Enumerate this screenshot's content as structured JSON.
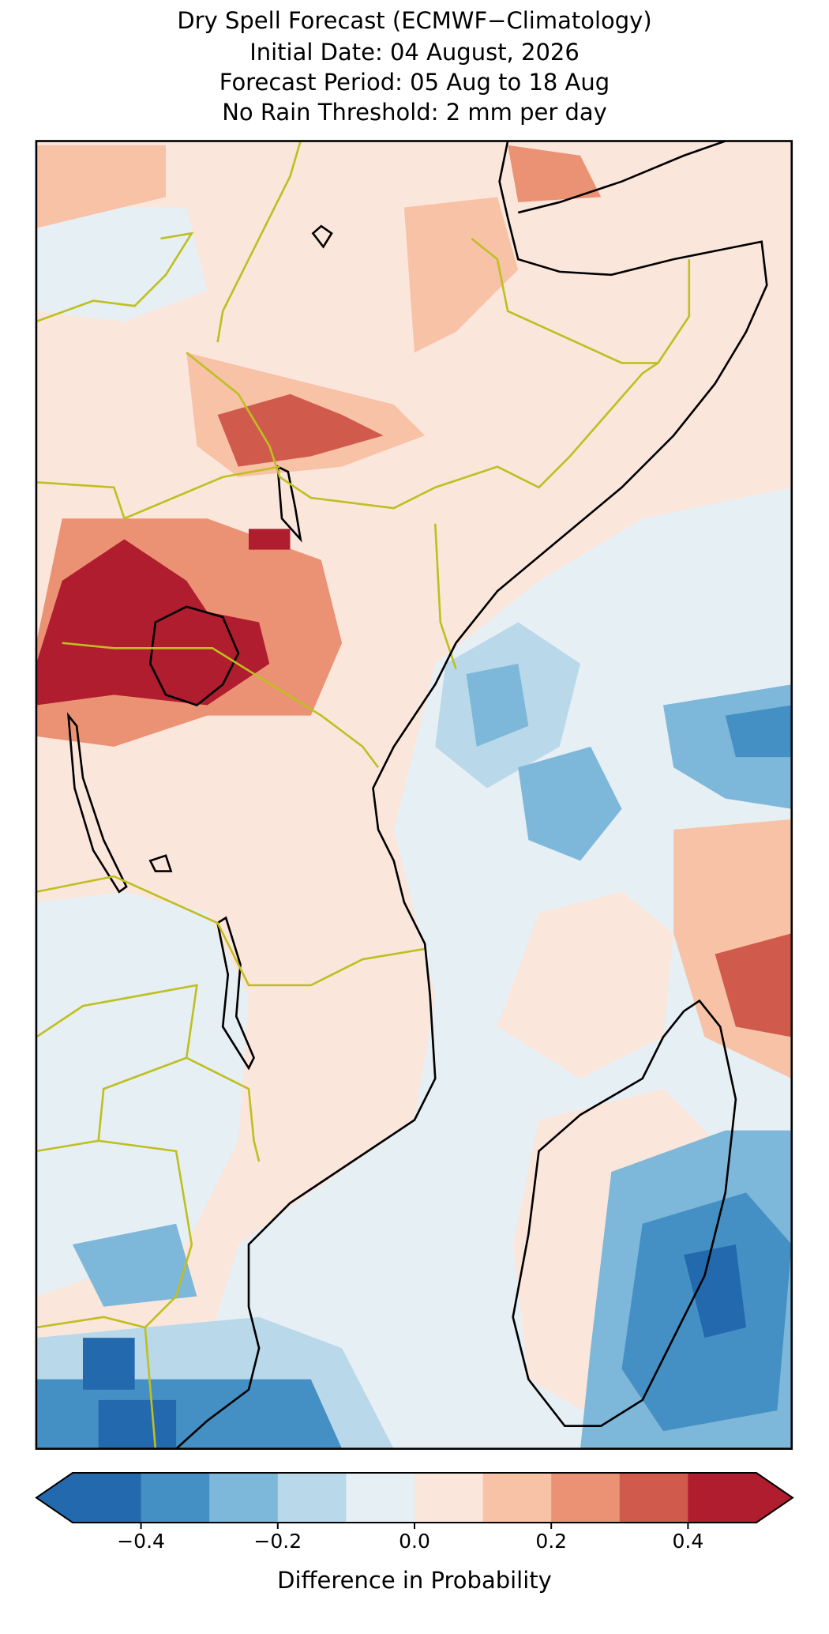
{
  "chart_data": {
    "type": "colorbar",
    "title": [
      "Dry Spell Forecast (ECMWF−Climatology)",
      "Initial Date: 04 August, 2026",
      "Forecast Period: 05 Aug to 18 Aug",
      "No Rain Threshold: 2 mm per day"
    ],
    "colorbar_label": "Difference in Probability",
    "boundaries": [
      -0.5,
      -0.4,
      -0.3,
      -0.2,
      -0.1,
      0,
      0.1,
      0.2,
      0.3,
      0.4,
      0.5
    ],
    "colors": [
      "#2369ad",
      "#4490c4",
      "#7db7d9",
      "#b9d8ea",
      "#e6eff4",
      "#fbe6dc",
      "#f8c2a7",
      "#ec9274",
      "#d05a4c",
      "#b01d2e"
    ],
    "extend": "both",
    "xlim": [
      -0.5,
      0.5
    ],
    "xticks": [
      {
        "value": -0.4,
        "label": "−0.4"
      },
      {
        "value": -0.2,
        "label": "−0.2"
      },
      {
        "value": 0,
        "label": "0.0"
      },
      0.2,
      0.4
    ]
  }
}
